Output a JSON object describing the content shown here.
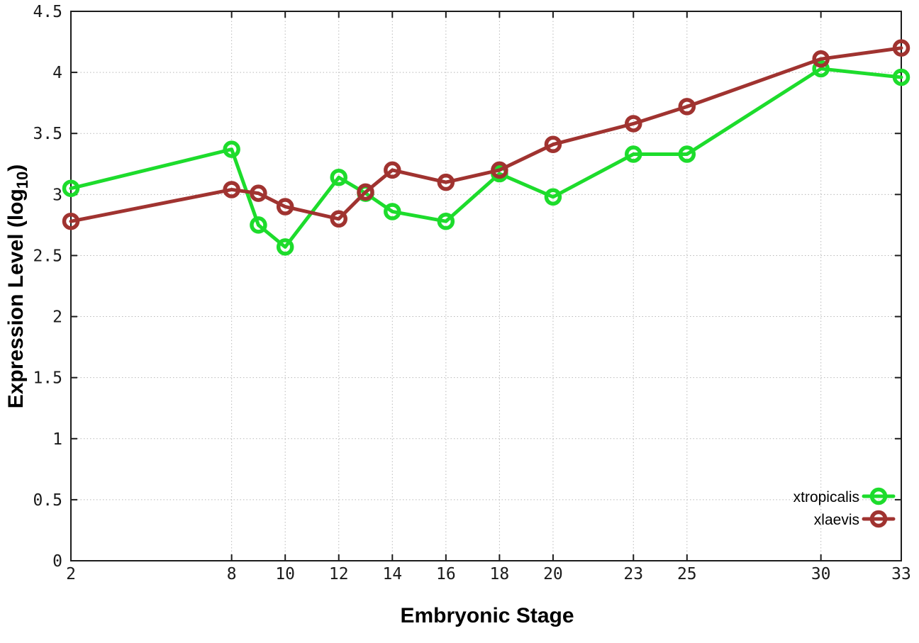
{
  "chart_data": {
    "type": "line",
    "title": "",
    "xlabel": "Embryonic Stage",
    "ylabel": "Expression Level (log10)",
    "ylabel_parts": {
      "main": "Expression Level (log",
      "sub": "10",
      "suffix": ")"
    },
    "xlim": [
      2,
      33
    ],
    "ylim": [
      0,
      4.5
    ],
    "grid": true,
    "legend_position": "bottom-right",
    "x": [
      2,
      8,
      9,
      10,
      12,
      13,
      14,
      16,
      18,
      20,
      23,
      25,
      30,
      33
    ],
    "xticks": [
      2,
      8,
      10,
      12,
      14,
      16,
      18,
      20,
      23,
      25,
      30,
      33
    ],
    "xtick_labels": [
      "2",
      "8",
      "10",
      "12",
      "14",
      "16",
      "18",
      "20",
      "23",
      "25",
      "30",
      "33"
    ],
    "yticks": [
      0,
      0.5,
      1,
      1.5,
      2,
      2.5,
      3,
      3.5,
      4,
      4.5
    ],
    "ytick_labels": [
      "0",
      "0.5",
      "1",
      "1.5",
      "2",
      "2.5",
      "3",
      "3.5",
      "4",
      "4.5"
    ],
    "series": [
      {
        "name": "xtropicalis",
        "color": "#1ddc2c",
        "values": [
          3.05,
          3.37,
          2.75,
          2.57,
          3.14,
          3.01,
          2.86,
          2.78,
          3.17,
          2.98,
          3.33,
          3.33,
          4.03,
          3.96
        ]
      },
      {
        "name": "xlaevis",
        "color": "#a03330",
        "values": [
          2.78,
          3.04,
          3.01,
          2.9,
          2.8,
          3.02,
          3.2,
          3.1,
          3.2,
          3.41,
          3.58,
          3.72,
          4.11,
          4.2
        ]
      }
    ]
  }
}
